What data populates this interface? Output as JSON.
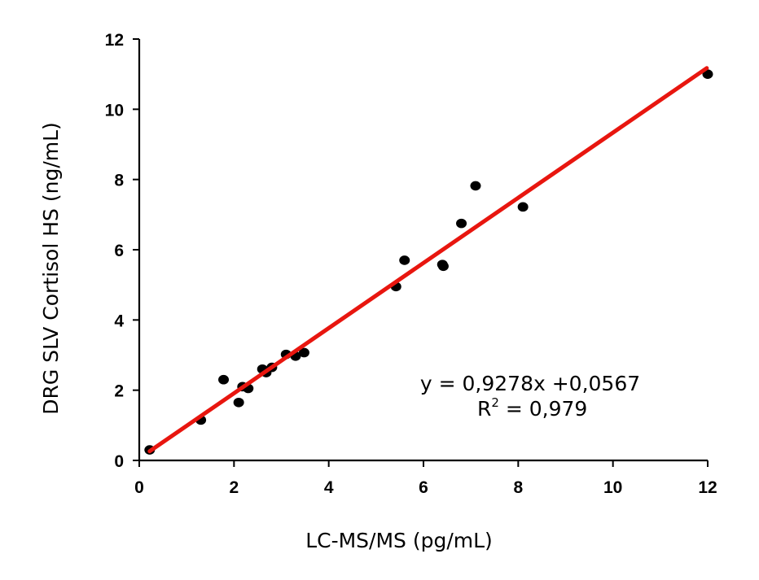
{
  "chart_data": {
    "type": "scatter",
    "title": "",
    "xlabel": "LC-MS/MS (pg/mL)",
    "ylabel": "DRG SLV Cortisol HS (ng/mL)",
    "xlim": [
      0,
      12
    ],
    "ylim": [
      0,
      12
    ],
    "xticks": [
      "0",
      "2",
      "4",
      "6",
      "8",
      "10",
      "12"
    ],
    "yticks": [
      "0",
      "2",
      "4",
      "6",
      "8",
      "10",
      "12"
    ],
    "grid": false,
    "legend": "none",
    "series": [
      {
        "marker_color": "#000000",
        "points": [
          {
            "x": 0.22,
            "y": 0.3
          },
          {
            "x": 1.3,
            "y": 1.15
          },
          {
            "x": 1.78,
            "y": 2.3
          },
          {
            "x": 2.1,
            "y": 1.65
          },
          {
            "x": 2.18,
            "y": 2.1
          },
          {
            "x": 2.3,
            "y": 2.05
          },
          {
            "x": 2.6,
            "y": 2.6
          },
          {
            "x": 2.68,
            "y": 2.5
          },
          {
            "x": 2.8,
            "y": 2.65
          },
          {
            "x": 3.1,
            "y": 3.02
          },
          {
            "x": 3.3,
            "y": 2.97
          },
          {
            "x": 3.48,
            "y": 3.07
          },
          {
            "x": 5.42,
            "y": 4.95
          },
          {
            "x": 5.6,
            "y": 5.7
          },
          {
            "x": 6.4,
            "y": 5.58
          },
          {
            "x": 6.42,
            "y": 5.53
          },
          {
            "x": 6.8,
            "y": 6.75
          },
          {
            "x": 7.1,
            "y": 7.82
          },
          {
            "x": 8.1,
            "y": 7.22
          },
          {
            "x": 12.0,
            "y": 11.0
          }
        ]
      }
    ],
    "fit_line": {
      "slope": 0.9278,
      "intercept": 0.0567,
      "x_start": 0.22,
      "x_end": 11.98,
      "color": "#e8160f"
    },
    "annotation": {
      "equation": "y = 0,9278x +0,0567",
      "r2_base": "R",
      "r2_sup": "2",
      "r2_value": " = 0,979"
    }
  }
}
